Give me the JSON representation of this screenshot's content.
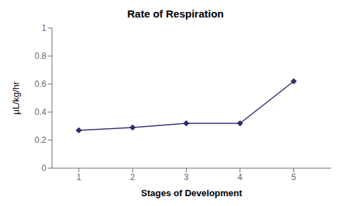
{
  "chart_data": {
    "type": "line",
    "title": "Rate of Respiration",
    "xlabel": "Stages of Development",
    "ylabel": "μL/kg/hr",
    "x": [
      1,
      2,
      3,
      4,
      5
    ],
    "values": [
      0.27,
      0.29,
      0.32,
      0.32,
      0.62
    ],
    "xlim": [
      0.5,
      5.7
    ],
    "ylim": [
      0,
      1.0
    ],
    "xticks": [
      1,
      2,
      3,
      4,
      5
    ],
    "yticks": [
      0,
      0.2,
      0.4,
      0.6,
      0.8,
      1
    ],
    "color": "#2b2b6e",
    "marker": "diamond",
    "grid": false
  }
}
